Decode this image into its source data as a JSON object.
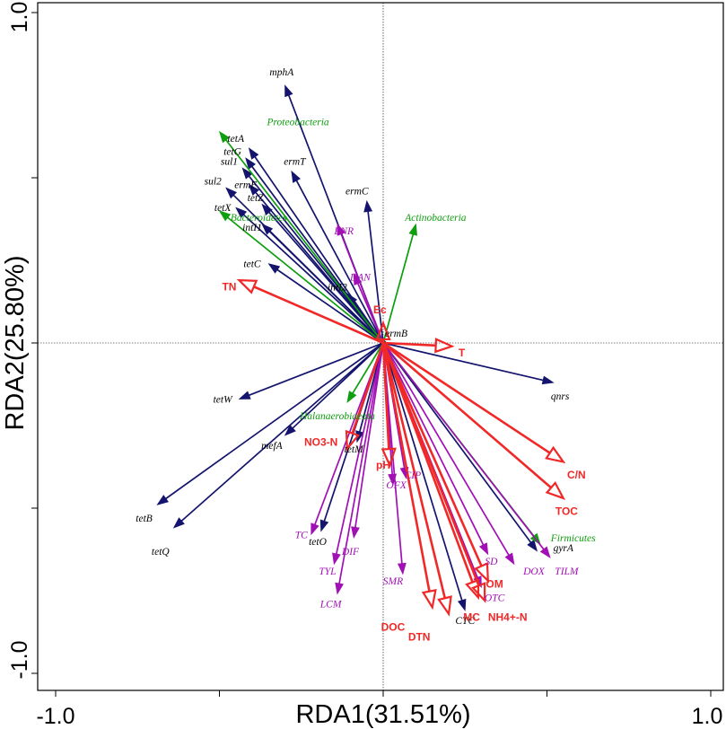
{
  "chart_data": {
    "type": "biplot",
    "xlabel": "RDA1(31.51%)",
    "ylabel": "RDA2(25.80%)",
    "xlim": [
      -1.0,
      1.0
    ],
    "ylim": [
      -1.0,
      1.0
    ],
    "x_tick_labels": [
      "-1.0",
      "1.0"
    ],
    "y_tick_labels": [
      "1.0",
      "-1.0"
    ],
    "colors": {
      "arg": "#14146e",
      "phylum": "#0e9e0e",
      "antibiotic": "#a010b4",
      "environment": "#f02828"
    },
    "series": [
      {
        "name": "ARGs",
        "style": "solid",
        "color_key": "arg",
        "vectors": [
          {
            "label": "mphA",
            "x": -0.3,
            "y": 0.78,
            "lx": -0.31,
            "ly": 0.82
          },
          {
            "label": "tetA",
            "x": -0.41,
            "y": 0.59,
            "lx": -0.45,
            "ly": 0.62
          },
          {
            "label": "tetG",
            "x": -0.42,
            "y": 0.56,
            "lx": -0.46,
            "ly": 0.58
          },
          {
            "label": "sul1",
            "x": -0.43,
            "y": 0.53,
            "lx": -0.47,
            "ly": 0.55
          },
          {
            "label": "ermT",
            "x": -0.28,
            "y": 0.52,
            "lx": -0.27,
            "ly": 0.55
          },
          {
            "label": "sul2",
            "x": -0.48,
            "y": 0.47,
            "lx": -0.52,
            "ly": 0.49
          },
          {
            "label": "ermF",
            "x": -0.41,
            "y": 0.48,
            "lx": -0.42,
            "ly": 0.48
          },
          {
            "label": "tetZ",
            "x": -0.37,
            "y": 0.42,
            "lx": -0.39,
            "ly": 0.44
          },
          {
            "label": "tetX",
            "x": -0.45,
            "y": 0.41,
            "lx": -0.49,
            "ly": 0.41
          },
          {
            "label": "intI1",
            "x": -0.37,
            "y": 0.36,
            "lx": -0.4,
            "ly": 0.35
          },
          {
            "label": "ermC",
            "x": -0.05,
            "y": 0.43,
            "lx": -0.08,
            "ly": 0.46
          },
          {
            "label": "tetC",
            "x": -0.35,
            "y": 0.24,
            "lx": -0.4,
            "ly": 0.24
          },
          {
            "label": "intI2",
            "x": -0.11,
            "y": 0.15,
            "lx": -0.14,
            "ly": 0.17
          },
          {
            "label": "ermB",
            "x": -0.01,
            "y": 0.02,
            "lx": 0.04,
            "ly": 0.03
          },
          {
            "label": "qnrs",
            "x": 0.52,
            "y": -0.12,
            "lx": 0.54,
            "ly": -0.16
          },
          {
            "label": "tetW",
            "x": -0.44,
            "y": -0.17,
            "lx": -0.49,
            "ly": -0.17
          },
          {
            "label": "mefA",
            "x": -0.3,
            "y": -0.28,
            "lx": -0.34,
            "ly": -0.31
          },
          {
            "label": "tetM",
            "x": -0.08,
            "y": -0.3,
            "lx": -0.09,
            "ly": -0.32
          },
          {
            "label": "tetO",
            "x": -0.19,
            "y": -0.57,
            "lx": -0.2,
            "ly": -0.6
          },
          {
            "label": "tetB",
            "x": -0.69,
            "y": -0.49,
            "lx": -0.73,
            "ly": -0.53
          },
          {
            "label": "tetQ",
            "x": -0.64,
            "y": -0.56,
            "lx": -0.68,
            "ly": -0.63
          },
          {
            "label": "gyrA",
            "x": 0.47,
            "y": -0.63,
            "lx": 0.55,
            "ly": -0.62
          },
          {
            "label": "CTC",
            "x": 0.25,
            "y": -0.81,
            "lx": 0.25,
            "ly": -0.84
          }
        ]
      },
      {
        "name": "Phyla",
        "style": "solid",
        "color_key": "phylum",
        "vectors": [
          {
            "label": "Proteobacteria",
            "x": -0.5,
            "y": 0.64,
            "lx": -0.26,
            "ly": 0.67
          },
          {
            "label": "Bacteroidetes",
            "x": -0.5,
            "y": 0.4,
            "lx": -0.38,
            "ly": 0.38
          },
          {
            "label": "Actinobacteria",
            "x": 0.1,
            "y": 0.36,
            "lx": 0.16,
            "ly": 0.38
          },
          {
            "label": "Halanaerobiaeota",
            "x": -0.11,
            "y": -0.18,
            "lx": -0.14,
            "ly": -0.22
          },
          {
            "label": "Firmicutes",
            "x": 0.48,
            "y": -0.61,
            "lx": 0.58,
            "ly": -0.59
          }
        ]
      },
      {
        "name": "Antibiotics",
        "style": "solid",
        "color_key": "antibiotic",
        "vectors": [
          {
            "label": "ENR",
            "x": -0.14,
            "y": 0.36,
            "lx": -0.12,
            "ly": 0.34
          },
          {
            "label": "DAN",
            "x": -0.09,
            "y": 0.21,
            "lx": -0.07,
            "ly": 0.2
          },
          {
            "label": "CIP",
            "x": 0.07,
            "y": -0.41,
            "lx": 0.09,
            "ly": -0.4
          },
          {
            "label": "OFX",
            "x": 0.03,
            "y": -0.43,
            "lx": 0.04,
            "ly": -0.43
          },
          {
            "label": "TC",
            "x": -0.22,
            "y": -0.58,
            "lx": -0.25,
            "ly": -0.58
          },
          {
            "label": "DIF",
            "x": -0.09,
            "y": -0.59,
            "lx": -0.1,
            "ly": -0.63
          },
          {
            "label": "TYL",
            "x": -0.15,
            "y": -0.67,
            "lx": -0.17,
            "ly": -0.69
          },
          {
            "label": "LCM",
            "x": -0.14,
            "y": -0.76,
            "lx": -0.16,
            "ly": -0.79
          },
          {
            "label": "SMR",
            "x": 0.06,
            "y": -0.7,
            "lx": 0.03,
            "ly": -0.72
          },
          {
            "label": "SD",
            "x": 0.32,
            "y": -0.64,
            "lx": 0.33,
            "ly": -0.66
          },
          {
            "label": "DOX",
            "x": 0.4,
            "y": -0.67,
            "lx": 0.46,
            "ly": -0.69
          },
          {
            "label": "TILM",
            "x": 0.51,
            "y": -0.65,
            "lx": 0.56,
            "ly": -0.69
          },
          {
            "label": "OTC",
            "x": 0.3,
            "y": -0.74,
            "lx": 0.34,
            "ly": -0.77
          }
        ]
      },
      {
        "name": "Environmental factors",
        "style": "open-arrow",
        "color_key": "environment",
        "vectors": [
          {
            "label": "TN",
            "x": -0.44,
            "y": 0.19,
            "lx": -0.47,
            "ly": 0.17
          },
          {
            "label": "Ec",
            "x": 0.0,
            "y": 0.06,
            "lx": -0.01,
            "ly": 0.1
          },
          {
            "label": "T",
            "x": 0.21,
            "y": -0.01,
            "lx": 0.24,
            "ly": -0.03
          },
          {
            "label": "NO3-N",
            "x": -0.11,
            "y": -0.32,
            "lx": -0.19,
            "ly": -0.3
          },
          {
            "label": "pH",
            "x": 0.02,
            "y": -0.37,
            "lx": 0.0,
            "ly": -0.37
          },
          {
            "label": "C/N",
            "x": 0.55,
            "y": -0.36,
            "lx": 0.59,
            "ly": -0.4
          },
          {
            "label": "TOC",
            "x": 0.55,
            "y": -0.47,
            "lx": 0.56,
            "ly": -0.51
          },
          {
            "label": "OM",
            "x": 0.32,
            "y": -0.72,
            "lx": 0.34,
            "ly": -0.73
          },
          {
            "label": "MC",
            "x": 0.29,
            "y": -0.77,
            "lx": 0.27,
            "ly": -0.83
          },
          {
            "label": "NH4+-N",
            "x": 0.31,
            "y": -0.78,
            "lx": 0.38,
            "ly": -0.83
          },
          {
            "label": "DOC",
            "x": 0.15,
            "y": -0.8,
            "lx": 0.03,
            "ly": -0.86
          },
          {
            "label": "DTN",
            "x": 0.2,
            "y": -0.82,
            "lx": 0.11,
            "ly": -0.89
          }
        ]
      }
    ]
  }
}
